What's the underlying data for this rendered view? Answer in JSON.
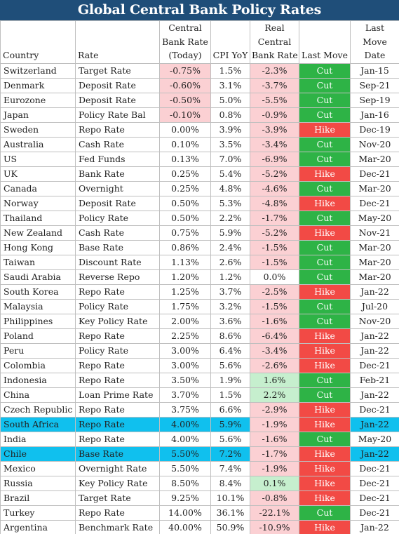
{
  "title": "Global Central Bank Policy Rates",
  "headers": {
    "country": "Country",
    "rate": "Rate",
    "cb_rate": [
      "Central",
      "Bank Rate",
      "(Today)"
    ],
    "cpi": "CPI YoY",
    "real_rate": [
      "Real",
      "Central",
      "Bank Rate"
    ],
    "last_move": "Last Move",
    "last_move_date": [
      "Last",
      "Move",
      "Date"
    ]
  },
  "colors": {
    "title_bg": "#1f4e79",
    "cut": "#2eb346",
    "hike": "#f24a45",
    "negative_real": "#fbd0d3",
    "positive_real": "#c6efce",
    "highlight_row": "#10c0ee"
  },
  "rows": [
    {
      "country": "Switzerland",
      "rate": "Target Rate",
      "cb": "-0.75%",
      "cb_neg": true,
      "cpi": "1.5%",
      "real": "-2.3%",
      "real_tone": "neg",
      "move": "Cut",
      "date": "Jan-15",
      "hl": false
    },
    {
      "country": "Denmark",
      "rate": "Deposit Rate",
      "cb": "-0.60%",
      "cb_neg": true,
      "cpi": "3.1%",
      "real": "-3.7%",
      "real_tone": "neg",
      "move": "Cut",
      "date": "Sep-21",
      "hl": false
    },
    {
      "country": "Eurozone",
      "rate": "Deposit Rate",
      "cb": "-0.50%",
      "cb_neg": true,
      "cpi": "5.0%",
      "real": "-5.5%",
      "real_tone": "neg",
      "move": "Cut",
      "date": "Sep-19",
      "hl": false
    },
    {
      "country": "Japan",
      "rate": "Policy Rate Bal",
      "cb": "-0.10%",
      "cb_neg": true,
      "cpi": "0.8%",
      "real": "-0.9%",
      "real_tone": "neg",
      "move": "Cut",
      "date": "Jan-16",
      "hl": false
    },
    {
      "country": "Sweden",
      "rate": "Repo Rate",
      "cb": "0.00%",
      "cb_neg": false,
      "cpi": "3.9%",
      "real": "-3.9%",
      "real_tone": "neg",
      "move": "Hike",
      "date": "Dec-19",
      "hl": false
    },
    {
      "country": "Australia",
      "rate": "Cash Rate",
      "cb": "0.10%",
      "cb_neg": false,
      "cpi": "3.5%",
      "real": "-3.4%",
      "real_tone": "neg",
      "move": "Cut",
      "date": "Nov-20",
      "hl": false
    },
    {
      "country": "US",
      "rate": "Fed Funds",
      "cb": "0.13%",
      "cb_neg": false,
      "cpi": "7.0%",
      "real": "-6.9%",
      "real_tone": "neg",
      "move": "Cut",
      "date": "Mar-20",
      "hl": false
    },
    {
      "country": "UK",
      "rate": "Bank Rate",
      "cb": "0.25%",
      "cb_neg": false,
      "cpi": "5.4%",
      "real": "-5.2%",
      "real_tone": "neg",
      "move": "Hike",
      "date": "Dec-21",
      "hl": false
    },
    {
      "country": "Canada",
      "rate": "Overnight",
      "cb": "0.25%",
      "cb_neg": false,
      "cpi": "4.8%",
      "real": "-4.6%",
      "real_tone": "neg",
      "move": "Cut",
      "date": "Mar-20",
      "hl": false
    },
    {
      "country": "Norway",
      "rate": "Deposit Rate",
      "cb": "0.50%",
      "cb_neg": false,
      "cpi": "5.3%",
      "real": "-4.8%",
      "real_tone": "neg",
      "move": "Hike",
      "date": "Dec-21",
      "hl": false
    },
    {
      "country": "Thailand",
      "rate": "Policy Rate",
      "cb": "0.50%",
      "cb_neg": false,
      "cpi": "2.2%",
      "real": "-1.7%",
      "real_tone": "neg",
      "move": "Cut",
      "date": "May-20",
      "hl": false
    },
    {
      "country": "New Zealand",
      "rate": "Cash Rate",
      "cb": "0.75%",
      "cb_neg": false,
      "cpi": "5.9%",
      "real": "-5.2%",
      "real_tone": "neg",
      "move": "Hike",
      "date": "Nov-21",
      "hl": false
    },
    {
      "country": "Hong Kong",
      "rate": "Base Rate",
      "cb": "0.86%",
      "cb_neg": false,
      "cpi": "2.4%",
      "real": "-1.5%",
      "real_tone": "neg",
      "move": "Cut",
      "date": "Mar-20",
      "hl": false
    },
    {
      "country": "Taiwan",
      "rate": "Discount Rate",
      "cb": "1.13%",
      "cb_neg": false,
      "cpi": "2.6%",
      "real": "-1.5%",
      "real_tone": "neg",
      "move": "Cut",
      "date": "Mar-20",
      "hl": false
    },
    {
      "country": "Saudi Arabia",
      "rate": "Reverse Repo",
      "cb": "1.20%",
      "cb_neg": false,
      "cpi": "1.2%",
      "real": "0.0%",
      "real_tone": "none",
      "move": "Cut",
      "date": "Mar-20",
      "hl": false
    },
    {
      "country": "South Korea",
      "rate": "Repo Rate",
      "cb": "1.25%",
      "cb_neg": false,
      "cpi": "3.7%",
      "real": "-2.5%",
      "real_tone": "neg",
      "move": "Hike",
      "date": "Jan-22",
      "hl": false
    },
    {
      "country": "Malaysia",
      "rate": "Policy Rate",
      "cb": "1.75%",
      "cb_neg": false,
      "cpi": "3.2%",
      "real": "-1.5%",
      "real_tone": "neg",
      "move": "Cut",
      "date": "Jul-20",
      "hl": false
    },
    {
      "country": "Philippines",
      "rate": "Key Policy Rate",
      "cb": "2.00%",
      "cb_neg": false,
      "cpi": "3.6%",
      "real": "-1.6%",
      "real_tone": "neg",
      "move": "Cut",
      "date": "Nov-20",
      "hl": false
    },
    {
      "country": "Poland",
      "rate": "Repo Rate",
      "cb": "2.25%",
      "cb_neg": false,
      "cpi": "8.6%",
      "real": "-6.4%",
      "real_tone": "neg",
      "move": "Hike",
      "date": "Jan-22",
      "hl": false
    },
    {
      "country": "Peru",
      "rate": "Policy Rate",
      "cb": "3.00%",
      "cb_neg": false,
      "cpi": "6.4%",
      "real": "-3.4%",
      "real_tone": "neg",
      "move": "Hike",
      "date": "Jan-22",
      "hl": false
    },
    {
      "country": "Colombia",
      "rate": "Repo Rate",
      "cb": "3.00%",
      "cb_neg": false,
      "cpi": "5.6%",
      "real": "-2.6%",
      "real_tone": "neg",
      "move": "Hike",
      "date": "Dec-21",
      "hl": false
    },
    {
      "country": "Indonesia",
      "rate": "Repo Rate",
      "cb": "3.50%",
      "cb_neg": false,
      "cpi": "1.9%",
      "real": "1.6%",
      "real_tone": "pos",
      "move": "Cut",
      "date": "Feb-21",
      "hl": false
    },
    {
      "country": "China",
      "rate": "Loan Prime Rate",
      "cb": "3.70%",
      "cb_neg": false,
      "cpi": "1.5%",
      "real": "2.2%",
      "real_tone": "pos",
      "move": "Cut",
      "date": "Jan-22",
      "hl": false
    },
    {
      "country": "Czech Republic",
      "rate": "Repo Rate",
      "cb": "3.75%",
      "cb_neg": false,
      "cpi": "6.6%",
      "real": "-2.9%",
      "real_tone": "neg",
      "move": "Hike",
      "date": "Dec-21",
      "hl": false
    },
    {
      "country": "South Africa",
      "rate": "Repo Rate",
      "cb": "4.00%",
      "cb_neg": false,
      "cpi": "5.9%",
      "real": "-1.9%",
      "real_tone": "neg",
      "move": "Hike",
      "date": "Jan-22",
      "hl": true
    },
    {
      "country": "India",
      "rate": "Repo Rate",
      "cb": "4.00%",
      "cb_neg": false,
      "cpi": "5.6%",
      "real": "-1.6%",
      "real_tone": "neg",
      "move": "Cut",
      "date": "May-20",
      "hl": false
    },
    {
      "country": "Chile",
      "rate": "Base Rate",
      "cb": "5.50%",
      "cb_neg": false,
      "cpi": "7.2%",
      "real": "-1.7%",
      "real_tone": "neg",
      "move": "Hike",
      "date": "Jan-22",
      "hl": true
    },
    {
      "country": "Mexico",
      "rate": "Overnight Rate",
      "cb": "5.50%",
      "cb_neg": false,
      "cpi": "7.4%",
      "real": "-1.9%",
      "real_tone": "neg",
      "move": "Hike",
      "date": "Dec-21",
      "hl": false
    },
    {
      "country": "Russia",
      "rate": "Key Policy Rate",
      "cb": "8.50%",
      "cb_neg": false,
      "cpi": "8.4%",
      "real": "0.1%",
      "real_tone": "pos",
      "move": "Hike",
      "date": "Dec-21",
      "hl": false
    },
    {
      "country": "Brazil",
      "rate": "Target Rate",
      "cb": "9.25%",
      "cb_neg": false,
      "cpi": "10.1%",
      "real": "-0.8%",
      "real_tone": "neg",
      "move": "Hike",
      "date": "Dec-21",
      "hl": false
    },
    {
      "country": "Turkey",
      "rate": "Repo Rate",
      "cb": "14.00%",
      "cb_neg": false,
      "cpi": "36.1%",
      "real": "-22.1%",
      "real_tone": "neg",
      "move": "Cut",
      "date": "Dec-21",
      "hl": false
    },
    {
      "country": "Argentina",
      "rate": "Benchmark Rate",
      "cb": "40.00%",
      "cb_neg": false,
      "cpi": "50.9%",
      "real": "-10.9%",
      "real_tone": "neg",
      "move": "Hike",
      "date": "Jan-22",
      "hl": false
    }
  ]
}
